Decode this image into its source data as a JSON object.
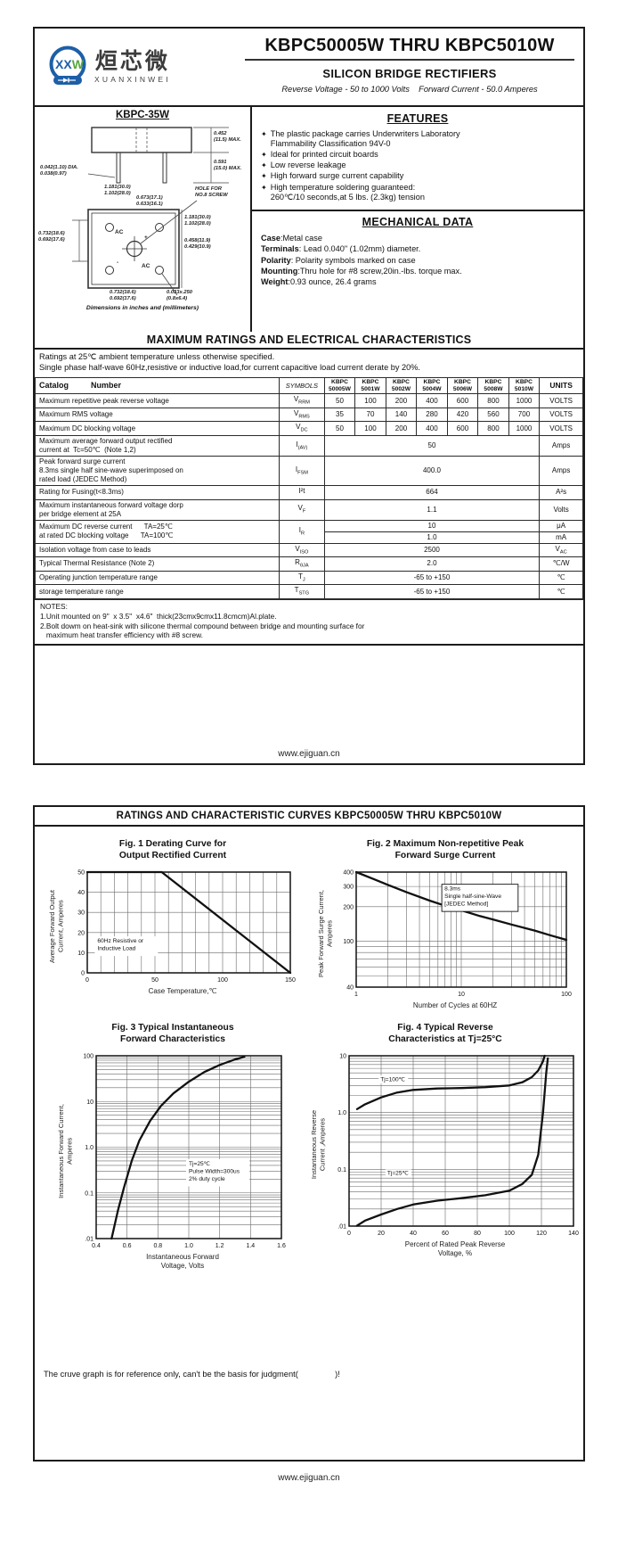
{
  "page1": {
    "logo": {
      "xx": "XX",
      "w": "W",
      "cn": "烜芯微",
      "en": "XUANXINWEI"
    },
    "header": {
      "title": "KBPC50005W THRU KBPC5010W",
      "subtitle": "SILICON BRIDGE RECTIFIERS",
      "tagline": "Reverse Voltage - 50 to 1000 Volts    Forward Current - 50.0 Amperes"
    },
    "package": {
      "name": "KBPC-35W",
      "dims": {
        "body_h": "0.452\n(11.5) MAX.",
        "lead_len": "0.591\n(15.0) MAX.",
        "lead_dia": "0.042(1.10) DIA.\n0.038(0.97)",
        "top_w": "1.181(30.0)\n1.102(28.0)",
        "hole_span": "0.673(17.1)\n0.633(16.1)",
        "hole_note": "HOLE FOR\nNO.8 SCREW",
        "left_h": "0.732(18.6)\n0.692(17.6)",
        "right_h": "1.181(30.0)\n1.102(28.0)",
        "right_inner": "0.458(11.9)\n0.429(10.9)",
        "bottom_w": "0.732(18.6)\n0.692(17.6)",
        "slot": "0.033x.250\n(0.8x6.4)"
      },
      "terminals": [
        "AC",
        "+",
        "-",
        "AC"
      ],
      "caption": "Dimensions in inches and (millimeters)"
    },
    "features": {
      "heading": "FEATURES",
      "bullet": "✦",
      "items": [
        "The plastic package carries Underwriters Laboratory\nFlammability Classification 94V-0",
        "Ideal for printed circuit boards",
        "Low reverse leakage",
        "High forward surge current capability",
        "High temperature soldering guaranteed:\n260℃/10 seconds,at 5 lbs. (2.3kg) tension"
      ]
    },
    "mechanical": {
      "heading": "MECHANICAL DATA",
      "rows": [
        {
          "k": "Case",
          "v": ":Metal case"
        },
        {
          "k": "Terminals",
          "v": ": Lead 0.040\"  (1.02mm) diameter."
        },
        {
          "k": "Polarity",
          "v": ": Polarity symbols marked on case"
        },
        {
          "k": "Mounting",
          "v": ":Thru hole for #8 screw,20in.-lbs. torque max."
        },
        {
          "k": "Weight",
          "v": ":0.93 ounce, 26.4 grams"
        }
      ]
    },
    "ratings": {
      "heading": "MAXIMUM RATINGS AND ELECTRICAL CHARACTERISTICS",
      "cond1": "Ratings at 25℃ ambient temperature unless otherwise specified.",
      "cond2": "Single phase half-wave 60Hz,resistive or inductive load,for current capacitive load current derate by 20%.",
      "catalog_label": "Catalog          Number",
      "symbols_label": "SYMBOLS",
      "units_label": "UNITS",
      "parts": [
        {
          "l1": "KBPC",
          "l2": "50005W"
        },
        {
          "l1": "KBPC",
          "l2": "5001W"
        },
        {
          "l1": "KBPC",
          "l2": "5002W"
        },
        {
          "l1": "KBPC",
          "l2": "5004W"
        },
        {
          "l1": "KBPC",
          "l2": "5006W"
        },
        {
          "l1": "KBPC",
          "l2": "5008W"
        },
        {
          "l1": "KBPC",
          "l2": "5010W"
        }
      ],
      "rows": [
        {
          "label": "Maximum repetitive peak reverse voltage",
          "sym_m": "V",
          "sym_s": "RRM",
          "values": [
            "50",
            "100",
            "200",
            "400",
            "600",
            "800",
            "1000"
          ],
          "unit": "VOLTS"
        },
        {
          "label": "Maximum RMS voltage",
          "sym_m": "V",
          "sym_s": "RMS",
          "values": [
            "35",
            "70",
            "140",
            "280",
            "420",
            "560",
            "700"
          ],
          "unit": "VOLTS"
        },
        {
          "label": "Maximum DC blocking voltage",
          "sym_m": "V",
          "sym_s": "DC",
          "values": [
            "50",
            "100",
            "200",
            "400",
            "600",
            "800",
            "1000"
          ],
          "unit": "VOLTS"
        },
        {
          "label": "Maximum average forward output rectified\ncurrent at  Tc=50℃  (Note 1,2)",
          "sym_m": "I",
          "sym_s": "(AV)",
          "value": "50",
          "unit": "Amps"
        },
        {
          "label": "Peak forward surge current\n8.3ms single half sine-wave superimposed on\nrated load (JEDEC Method)",
          "sym_m": "I",
          "sym_s": "FSM",
          "value": "400.0",
          "unit": "Amps"
        },
        {
          "label": "Rating for Fusing(t<8.3ms)",
          "sym_m": "I²t",
          "sym_s": "",
          "value": "664",
          "unit": "A²s"
        },
        {
          "label": "Maximum instantaneous forward voltage dorp\nper bridge element at 25A",
          "sym_m": "V",
          "sym_s": "F",
          "value": "1.1",
          "unit": "Volts"
        },
        {
          "label": "Maximum DC reverse current      TA=25℃\nat rated DC blocking voltage      TA=100℃",
          "sym_m": "I",
          "sym_s": "R",
          "value_1": "10",
          "unit_1": "μA",
          "value_2": "1.0",
          "unit_2": "mA"
        },
        {
          "label": "Isolation voltage from case to leads",
          "sym_m": "V",
          "sym_s": "ISO",
          "value": "2500",
          "unit_m": "V",
          "unit_s": "AC"
        },
        {
          "label": "Typical Thermal Resistance (Note 2)",
          "sym_m": "R",
          "sym_s": "θJA",
          "value": "2.0",
          "unit": "℃/W"
        },
        {
          "label": "Operating junction temperature range",
          "sym_m": "T",
          "sym_s": "J",
          "value": "-65 to +150",
          "unit": "℃"
        },
        {
          "label": "storage temperature range",
          "sym_m": "T",
          "sym_s": "STG",
          "value": "-65 to +150",
          "unit": "℃"
        }
      ],
      "notes_title": "NOTES:",
      "notes": [
        "1.Unit mounted on 9\"  x 3.5\"  x4.6\"  thick(23cmx9cmx11.8cmcm)Al.plate.",
        "2.Bolt dowm on heat-sink with silicone thermal compound between bridge and mounting surface for",
        "   maximum heat transfer efficiency with #8 screw."
      ]
    },
    "footer": "www.ejiguan.cn"
  },
  "page2": {
    "title": "RATINGS AND CHARACTERISTIC CURVES KBPC50005W THRU KBPC5010W",
    "disclaimer": "The cruve graph is for reference only, can't be the basis for judgment(                )!",
    "footer": "www.ejiguan.cn"
  },
  "colors": {
    "logo_blue": "#1d5fa7",
    "logo_green": "#57a73c",
    "line_black": "#111111"
  },
  "chart_data": [
    {
      "id": "fig1",
      "type": "line",
      "title": "Fig. 1 Derating Curve for\nOutput Rectified Current",
      "x": {
        "type": "linear",
        "min": 0,
        "max": 150,
        "grid_step": 10,
        "ticks": [
          0,
          50,
          100,
          150
        ],
        "label": "Case Temperature,℃"
      },
      "y": {
        "type": "linear",
        "min": 0,
        "max": 50,
        "grid_step": 10,
        "ticks": [
          0,
          10,
          20,
          30,
          40,
          50
        ],
        "label": "Average Forward Output\nCurrent, Amperes"
      },
      "series": [
        {
          "name": "derating-curve",
          "points": [
            [
              0,
              50
            ],
            [
              55,
              50
            ],
            [
              150,
              0
            ]
          ]
        }
      ],
      "note": {
        "border": false,
        "x": 0.05,
        "y": 0.7,
        "lines": [
          "60Hz Resistive or",
          "Inductive Load"
        ]
      }
    },
    {
      "id": "fig2",
      "type": "line",
      "title": "Fig. 2 Maximum Non-repetitive Peak\nForward Surge Current",
      "x": {
        "type": "log",
        "min": 1,
        "max": 100,
        "ticks": [
          1,
          10,
          100
        ],
        "label": "Number of Cycles at 60HZ"
      },
      "y": {
        "type": "log",
        "min": 40,
        "max": 400,
        "ticks": [
          400,
          300,
          200,
          100,
          40
        ],
        "label": "Peak Forward Surge Current,\nAmperes"
      },
      "series": [
        {
          "name": "surge-current",
          "points": [
            [
              1,
              400
            ],
            [
              1.5,
              345
            ],
            [
              2,
              310
            ],
            [
              3,
              268
            ],
            [
              5,
              226
            ],
            [
              7,
              204
            ],
            [
              10,
              186
            ],
            [
              15,
              166
            ],
            [
              20,
              155
            ],
            [
              30,
              140
            ],
            [
              50,
              124
            ],
            [
              70,
              113
            ],
            [
              100,
              103
            ]
          ]
        }
      ],
      "note": {
        "border": true,
        "x": 0.42,
        "y": 0.16,
        "lines": [
          "8.3ms",
          "Single half-sine-Wave",
          "[JEDEC Method]"
        ]
      }
    },
    {
      "id": "fig3",
      "type": "line",
      "title": "Fig. 3 Typical Instantaneous\nForward Characteristics",
      "x": {
        "type": "linear",
        "min": 0.4,
        "max": 1.6,
        "grid_step": 0.2,
        "ticks": [
          "0.4",
          "0.6",
          "0.8",
          "1.0",
          "1.2",
          "1.4",
          "1.6"
        ],
        "label": "Instantaneous Forward\nVoltage, Volts"
      },
      "y": {
        "type": "log",
        "min": 0.01,
        "max": 100,
        "ticks": [
          "100",
          "10",
          "1.0",
          "0.1",
          ".01"
        ],
        "label": "Instantaneous Forward Current,\nAmperes"
      },
      "series": [
        {
          "name": "forward-characteristic",
          "points": [
            [
              0.5,
              0.01
            ],
            [
              0.54,
              0.04
            ],
            [
              0.58,
              0.13
            ],
            [
              0.63,
              0.5
            ],
            [
              0.68,
              1.4
            ],
            [
              0.75,
              3.8
            ],
            [
              0.82,
              8
            ],
            [
              0.9,
              15
            ],
            [
              1.0,
              27
            ],
            [
              1.1,
              44
            ],
            [
              1.2,
              63
            ],
            [
              1.3,
              83
            ],
            [
              1.36,
              95
            ]
          ]
        }
      ],
      "note": {
        "border": false,
        "x": 0.5,
        "y": 0.6,
        "lines": [
          "Tj=25℃",
          "Pulse Width=300us",
          "2% duty cycle"
        ]
      }
    },
    {
      "id": "fig4",
      "type": "line",
      "title": "Fig. 4 Typical Reverse\nCharacteristics at Tj=25°C",
      "x": {
        "type": "linear",
        "min": 0,
        "max": 140,
        "grid_step": 20,
        "ticks": [
          0,
          20,
          40,
          60,
          80,
          100,
          120,
          140
        ],
        "label": "Percent of Rated Peak Reverse\nVoltage, %"
      },
      "y": {
        "type": "log",
        "min": 0.01,
        "max": 10,
        "ticks": [
          "10",
          "1.0",
          "0.1",
          ".01"
        ],
        "label": "Instantaneous Reverse\nCurrent ,Amperes"
      },
      "series": [
        {
          "name": "Tj=100℃",
          "points": [
            [
              5,
              1.15
            ],
            [
              10,
              1.4
            ],
            [
              20,
              1.85
            ],
            [
              30,
              2.25
            ],
            [
              40,
              2.5
            ],
            [
              55,
              2.65
            ],
            [
              70,
              2.7
            ],
            [
              85,
              2.8
            ],
            [
              100,
              3.0
            ],
            [
              108,
              3.4
            ],
            [
              114,
              4.2
            ],
            [
              118,
              5.5
            ],
            [
              121,
              8
            ],
            [
              122,
              10
            ]
          ]
        },
        {
          "name": "Tj=25℃",
          "points": [
            [
              5,
              0.0102
            ],
            [
              10,
              0.0125
            ],
            [
              20,
              0.016
            ],
            [
              30,
              0.02
            ],
            [
              40,
              0.024
            ],
            [
              55,
              0.028
            ],
            [
              70,
              0.031
            ],
            [
              85,
              0.035
            ],
            [
              100,
              0.042
            ],
            [
              108,
              0.055
            ],
            [
              114,
              0.08
            ],
            [
              118,
              0.18
            ],
            [
              121,
              1
            ],
            [
              123,
              5
            ],
            [
              124,
              9
            ]
          ]
        }
      ],
      "labels": [
        {
          "text": "Tj=100℃",
          "x": 0.14,
          "y": 0.15
        },
        {
          "text": "Tj=25℃",
          "x": 0.17,
          "y": 0.7
        }
      ]
    }
  ]
}
